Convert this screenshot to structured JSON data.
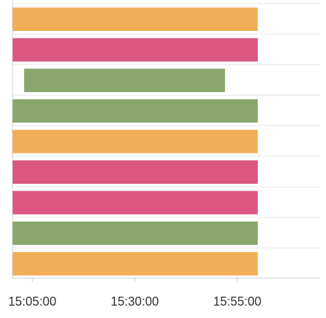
{
  "chart_data": {
    "type": "bar",
    "orientation": "horizontal",
    "title": "",
    "xlabel": "",
    "ylabel": "",
    "x_ticks": [
      "15:05:00",
      "15:30:00",
      "15:55:00"
    ],
    "x_tick_values_min": [
      0,
      25,
      50
    ],
    "grid": true,
    "bars": [
      {
        "start": "15:00:00",
        "end": "16:00:00",
        "color": "#F2AE57"
      },
      {
        "start": "15:00:00",
        "end": "16:00:00",
        "color": "#DB5680"
      },
      {
        "start": "15:03:00",
        "end": "15:52:00",
        "color": "#89A66B"
      },
      {
        "start": "15:00:00",
        "end": "16:00:00",
        "color": "#89A66B"
      },
      {
        "start": "15:00:00",
        "end": "16:00:00",
        "color": "#F2AE57"
      },
      {
        "start": "15:00:00",
        "end": "16:00:00",
        "color": "#DB5680"
      },
      {
        "start": "15:00:00",
        "end": "16:00:00",
        "color": "#DB5680"
      },
      {
        "start": "15:00:00",
        "end": "16:00:00",
        "color": "#89A66B"
      },
      {
        "start": "15:00:00",
        "end": "16:00:00",
        "color": "#F2AE57"
      }
    ]
  }
}
